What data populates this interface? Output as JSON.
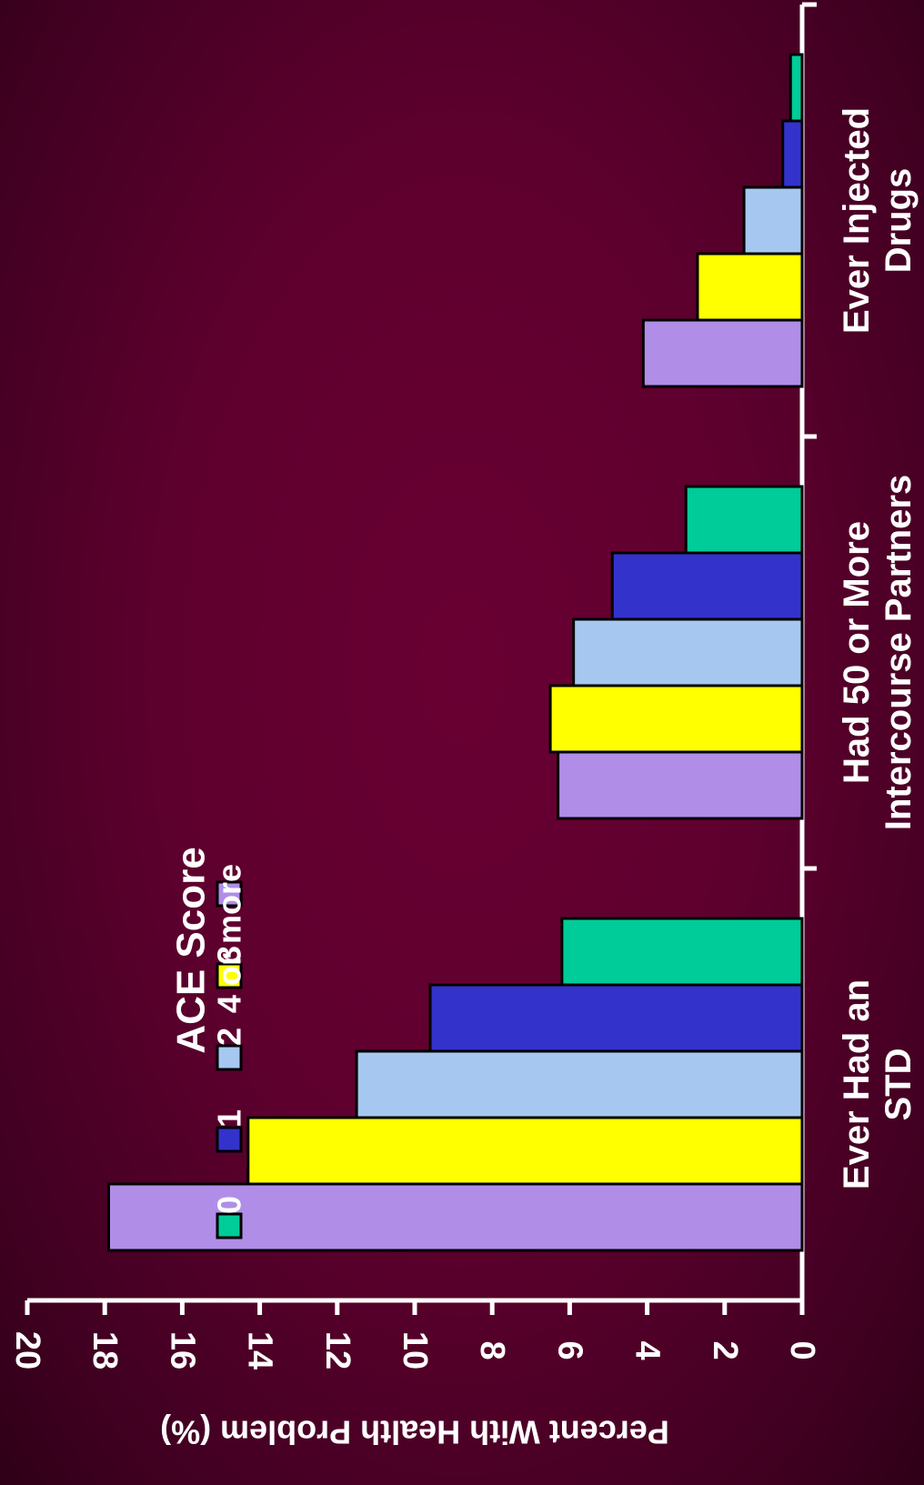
{
  "chart_data": {
    "type": "bar",
    "orientation": "rotated-90-clockwise",
    "ylabel": "Percent With Health Problem (%)",
    "ylim": [
      0,
      20
    ],
    "yticks": [
      0,
      2,
      4,
      6,
      8,
      10,
      12,
      14,
      16,
      18,
      20
    ],
    "categories": [
      [
        "Ever Injected",
        "Drugs"
      ],
      [
        "Had 50 or More",
        "Intercourse Partners"
      ],
      [
        "Ever Had an",
        "STD"
      ]
    ],
    "legend": {
      "title": "ACE Score",
      "placement": "top-left (rotated)"
    },
    "series": [
      {
        "name": "0",
        "color": "#00cc99",
        "values": [
          0.3,
          3.0,
          6.2
        ]
      },
      {
        "name": "1",
        "color": "#3333cc",
        "values": [
          0.5,
          4.9,
          9.6
        ]
      },
      {
        "name": "2",
        "color": "#a6c8f0",
        "values": [
          1.5,
          5.9,
          11.5
        ]
      },
      {
        "name": "3",
        "color": "#ffff00",
        "values": [
          2.7,
          6.5,
          14.3
        ]
      },
      {
        "name": "4 or more",
        "color": "#b08ee8",
        "values": [
          4.1,
          6.3,
          17.9
        ]
      }
    ]
  }
}
